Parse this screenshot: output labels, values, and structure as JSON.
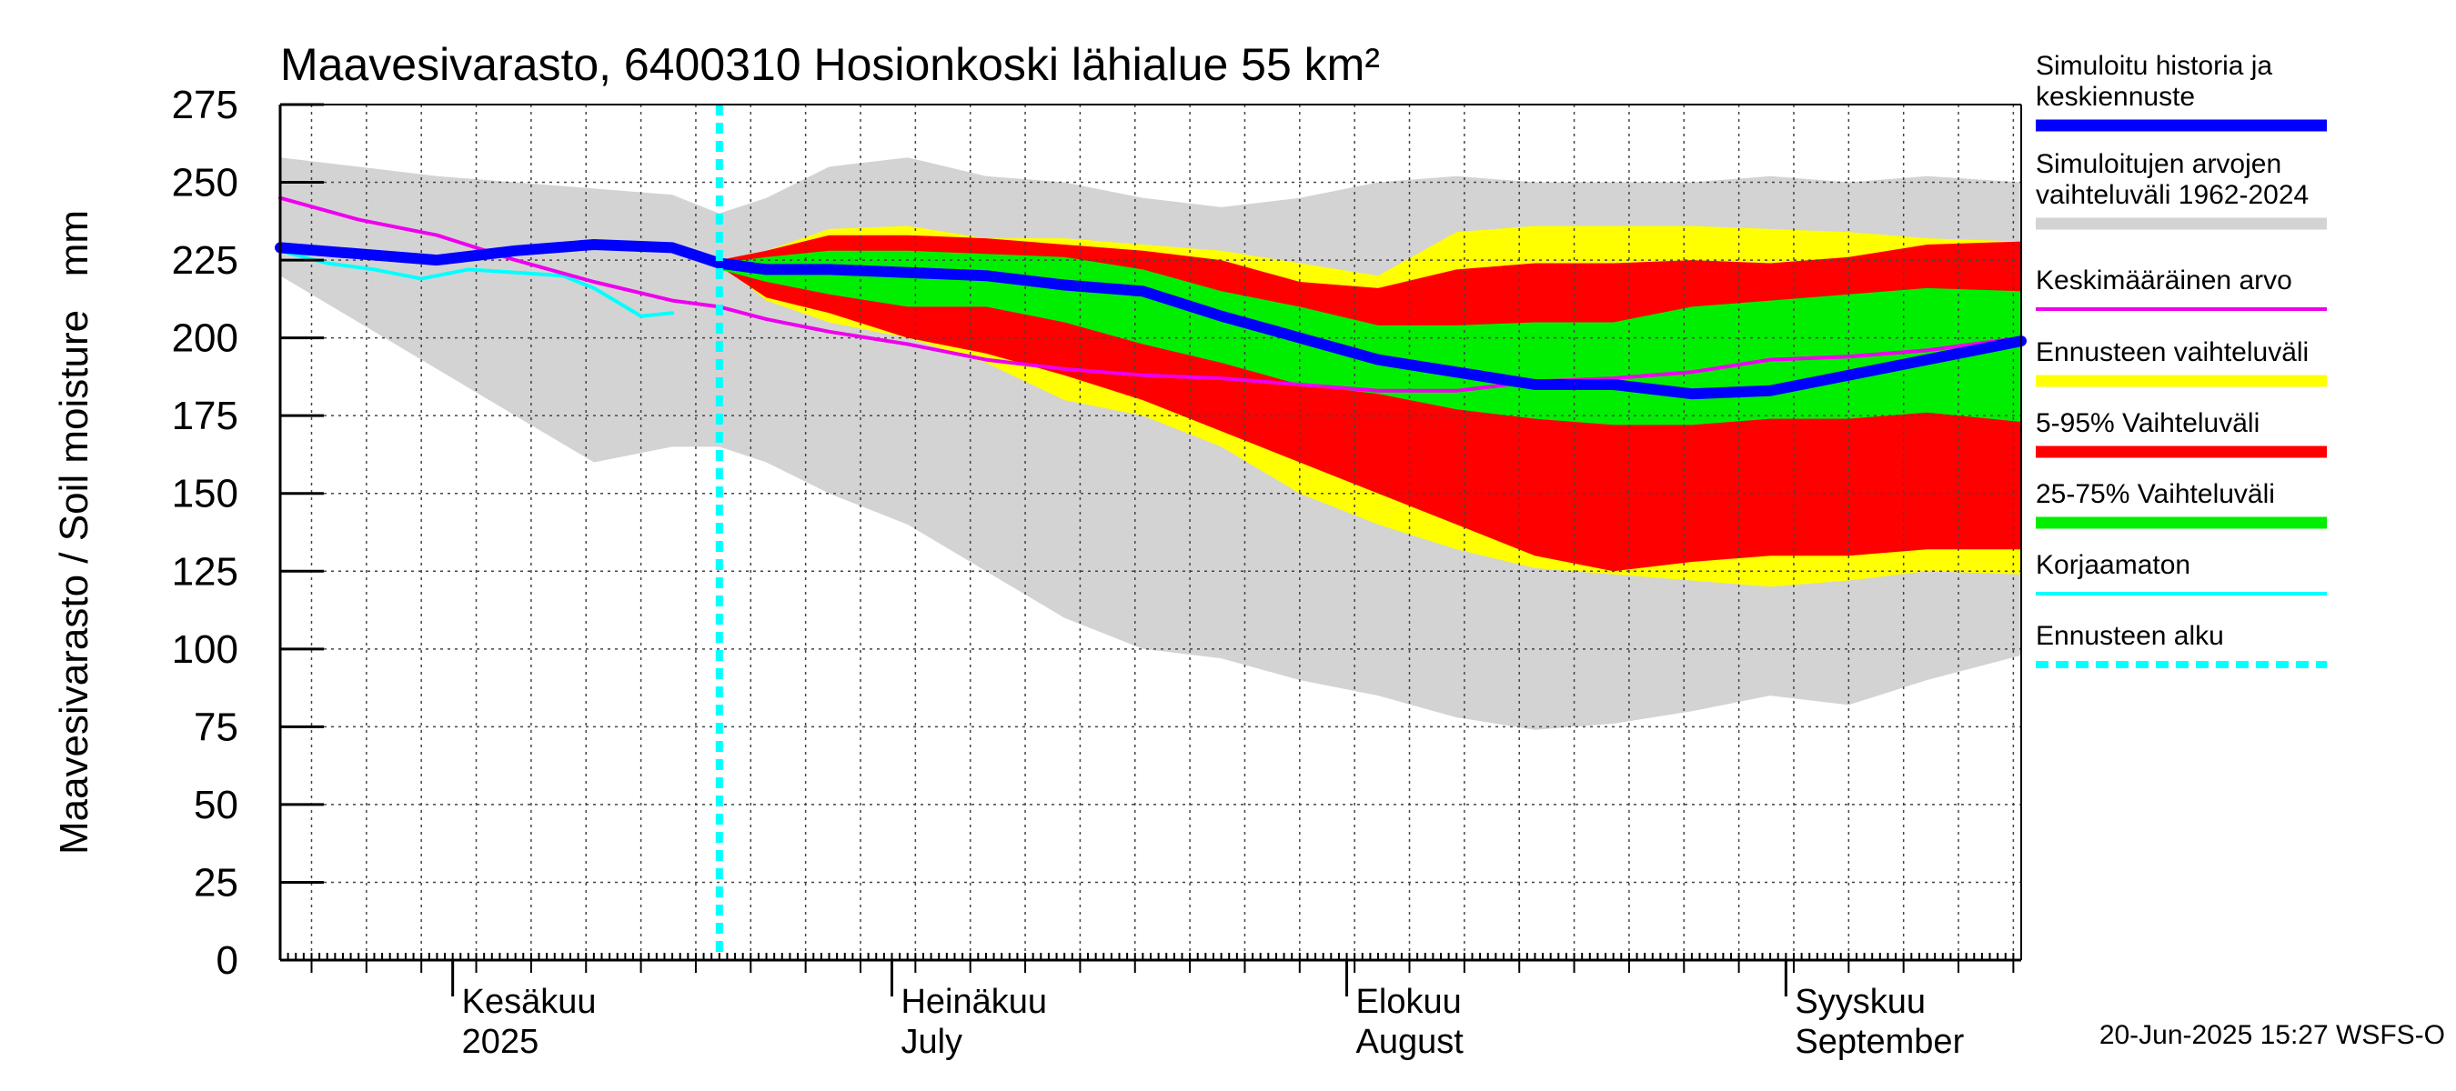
{
  "chart_data": {
    "type": "area",
    "title": "Maavesivarasto, 6400310 Hosionkoski lähialue 55 km²",
    "ylabel": "Maavesivarasto / Soil moisture   mm",
    "xlabel": "",
    "ylim": [
      0,
      275
    ],
    "yticks": [
      0,
      25,
      50,
      75,
      100,
      125,
      150,
      175,
      200,
      225,
      250,
      275
    ],
    "x_days": [
      0,
      111
    ],
    "forecast_start_day": 28,
    "month_labels": [
      {
        "day": 11,
        "line1": "Kesäkuu",
        "line2": "2025"
      },
      {
        "day": 39,
        "line1": "Heinäkuu",
        "line2": "July"
      },
      {
        "day": 68,
        "line1": "Elokuu",
        "line2": "August"
      },
      {
        "day": 96,
        "line1": "Syyskuu",
        "line2": "September"
      }
    ],
    "x": [
      0,
      5,
      10,
      15,
      20,
      25,
      28,
      31,
      35,
      40,
      45,
      50,
      55,
      60,
      65,
      70,
      75,
      80,
      85,
      90,
      95,
      100,
      105,
      111
    ],
    "series": [
      {
        "name": "Simuloitujen arvojen vaihteluväli 1962-2024 (max)",
        "color": "#d3d3d3",
        "values": [
          258,
          255,
          252,
          250,
          248,
          246,
          240,
          245,
          255,
          258,
          252,
          250,
          245,
          242,
          245,
          250,
          252,
          250,
          250,
          250,
          252,
          250,
          252,
          250
        ]
      },
      {
        "name": "Simuloitujen arvojen vaihteluväli 1962-2024 (min)",
        "color": "#d3d3d3",
        "values": [
          220,
          205,
          190,
          175,
          160,
          165,
          165,
          160,
          150,
          140,
          125,
          110,
          100,
          97,
          90,
          85,
          78,
          74,
          76,
          80,
          85,
          82,
          90,
          98
        ]
      },
      {
        "name": "Ennusteen vaihteluväli (max)",
        "color": "#ffff00",
        "values": [
          null,
          null,
          null,
          null,
          null,
          null,
          225,
          228,
          235,
          236,
          232,
          232,
          230,
          228,
          224,
          220,
          234,
          236,
          236,
          236,
          235,
          234,
          232,
          231
        ]
      },
      {
        "name": "Ennusteen vaihteluväli (min)",
        "color": "#ffff00",
        "values": [
          null,
          null,
          null,
          null,
          null,
          null,
          224,
          212,
          205,
          200,
          192,
          180,
          175,
          165,
          150,
          140,
          132,
          126,
          124,
          122,
          120,
          122,
          125,
          124
        ]
      },
      {
        "name": "5-95% Vaihteluväli (max)",
        "color": "#ff0000",
        "values": [
          null,
          null,
          null,
          null,
          null,
          null,
          225,
          228,
          233,
          233,
          232,
          230,
          228,
          225,
          218,
          216,
          222,
          224,
          224,
          225,
          224,
          226,
          230,
          231
        ]
      },
      {
        "name": "5-95% Vaihteluväli (min)",
        "color": "#ff0000",
        "values": [
          null,
          null,
          null,
          null,
          null,
          null,
          223,
          213,
          208,
          200,
          195,
          188,
          180,
          170,
          160,
          150,
          140,
          130,
          125,
          128,
          130,
          130,
          132,
          132
        ]
      },
      {
        "name": "25-75% Vaihteluväli (max)",
        "color": "#00ee00",
        "values": [
          null,
          null,
          null,
          null,
          null,
          null,
          224,
          226,
          228,
          228,
          227,
          226,
          222,
          215,
          210,
          204,
          204,
          205,
          205,
          210,
          212,
          214,
          216,
          215
        ]
      },
      {
        "name": "25-75% Vaihteluväli (min)",
        "color": "#00ee00",
        "values": [
          null,
          null,
          null,
          null,
          null,
          null,
          222,
          218,
          214,
          210,
          210,
          205,
          198,
          192,
          185,
          182,
          177,
          174,
          172,
          172,
          174,
          174,
          176,
          173
        ]
      },
      {
        "name": "Simuloitu historia ja keskiennuste",
        "color": "#0000ff",
        "values": [
          229,
          227,
          225,
          228,
          230,
          229,
          224,
          222,
          222,
          221,
          220,
          217,
          215,
          207,
          200,
          193,
          189,
          185,
          185,
          182,
          183,
          188,
          193,
          199
        ]
      },
      {
        "name": "Keskimääräinen arvo",
        "color": "#ee00ee",
        "values": [
          245,
          238,
          233,
          225,
          218,
          212,
          210,
          206,
          202,
          198,
          193,
          190,
          188,
          187,
          185,
          183,
          183,
          186,
          187,
          189,
          193,
          194,
          196,
          200
        ]
      },
      {
        "name": "Korjaamaton",
        "color": "#00ffff",
        "x": [
          0,
          3,
          6,
          9,
          12,
          15,
          18,
          20,
          22,
          23,
          25
        ],
        "values": [
          228,
          224,
          222,
          219,
          222,
          221,
          220,
          216,
          210,
          207,
          208
        ]
      }
    ],
    "legend": [
      {
        "label": "Simuloitu historia ja keskiennuste",
        "color": "#0000ff",
        "style": "thick"
      },
      {
        "label": "Simuloitujen arvojen vaihteluväli 1962-2024",
        "color": "#d3d3d3",
        "style": "thick"
      },
      {
        "label": "Keskimääräinen arvo",
        "color": "#ee00ee",
        "style": "thin"
      },
      {
        "label": "Ennusteen vaihteluväli",
        "color": "#ffff00",
        "style": "thick"
      },
      {
        "label": "5-95% Vaihteluväli",
        "color": "#ff0000",
        "style": "thick"
      },
      {
        "label": "25-75% Vaihteluväli",
        "color": "#00ee00",
        "style": "thick"
      },
      {
        "label": "Korjaamaton",
        "color": "#00ffff",
        "style": "thin"
      },
      {
        "label": "Ennusteen alku",
        "color": "#00ffff",
        "style": "dashed"
      }
    ],
    "legend_position": "right",
    "grid": true
  },
  "footer": "20-Jun-2025 15:27 WSFS-O"
}
